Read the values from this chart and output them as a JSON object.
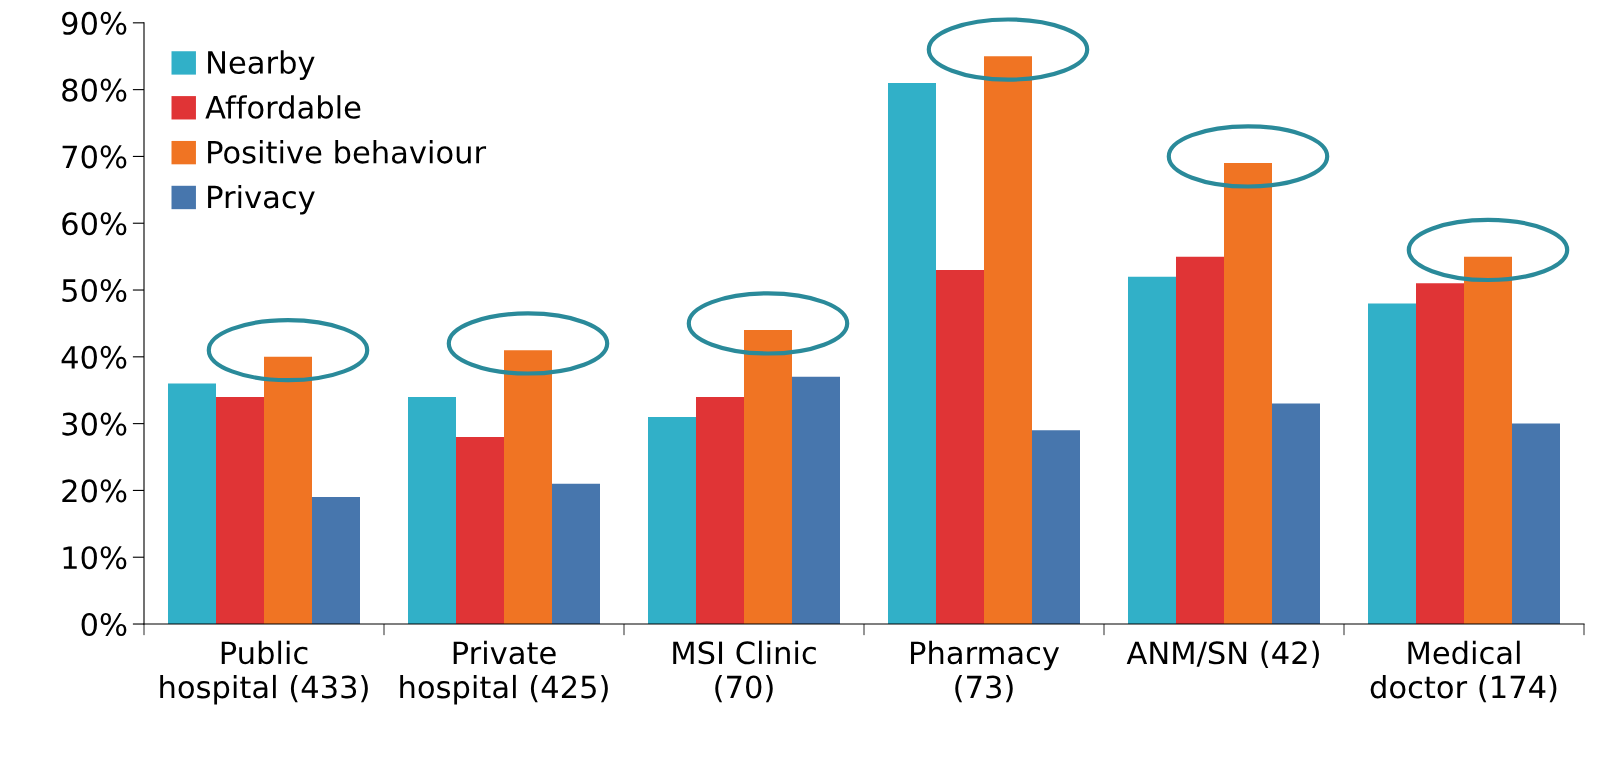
{
  "chart_data": {
    "type": "bar",
    "categories": [
      "Public\nhospital (433)",
      "Private\nhospital (425)",
      "MSI Clinic\n(70)",
      "Pharmacy\n(73)",
      "ANM/SN (42)",
      "Medical\ndoctor (174)"
    ],
    "series": [
      {
        "name": "Nearby",
        "color": "#31b0c8",
        "values": [
          36,
          34,
          31,
          81,
          52,
          48
        ]
      },
      {
        "name": "Affordable",
        "color": "#e03436",
        "values": [
          34,
          28,
          34,
          53,
          55,
          51
        ]
      },
      {
        "name": "Positive behaviour",
        "color": "#f07423",
        "values": [
          40,
          41,
          44,
          85,
          69,
          55
        ]
      },
      {
        "name": "Privacy",
        "color": "#4776ad",
        "values": [
          19,
          21,
          37,
          29,
          33,
          30
        ]
      }
    ],
    "ylim": [
      0,
      90
    ],
    "yticks": [
      {
        "value": 0,
        "label": "0%"
      },
      {
        "value": 10,
        "label": "10%"
      },
      {
        "value": 20,
        "label": "20%"
      },
      {
        "value": 30,
        "label": "30%"
      },
      {
        "value": 40,
        "label": "40%"
      },
      {
        "value": 50,
        "label": "50%"
      },
      {
        "value": 60,
        "label": "60%"
      },
      {
        "value": 70,
        "label": "70%"
      },
      {
        "value": 80,
        "label": "80%"
      },
      {
        "value": 90,
        "label": "90%"
      }
    ],
    "legend": "top left",
    "grid": false
  }
}
